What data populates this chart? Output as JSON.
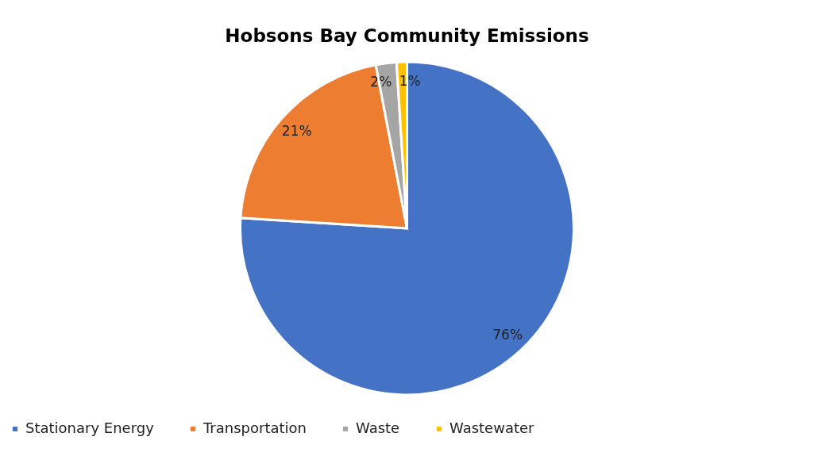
{
  "chart_data": {
    "type": "pie",
    "title": "Hobsons Bay Community Emissions",
    "categories": [
      "Stationary Energy",
      "Transportation",
      "Waste",
      "Wastewater"
    ],
    "values": [
      76,
      21,
      2,
      1
    ],
    "colors": [
      "#4472c4",
      "#ed7d31",
      "#a5a5a5",
      "#ffc000"
    ],
    "value_labels": [
      "76%",
      "21%",
      "2%",
      "1%"
    ],
    "legend": "bottom"
  }
}
